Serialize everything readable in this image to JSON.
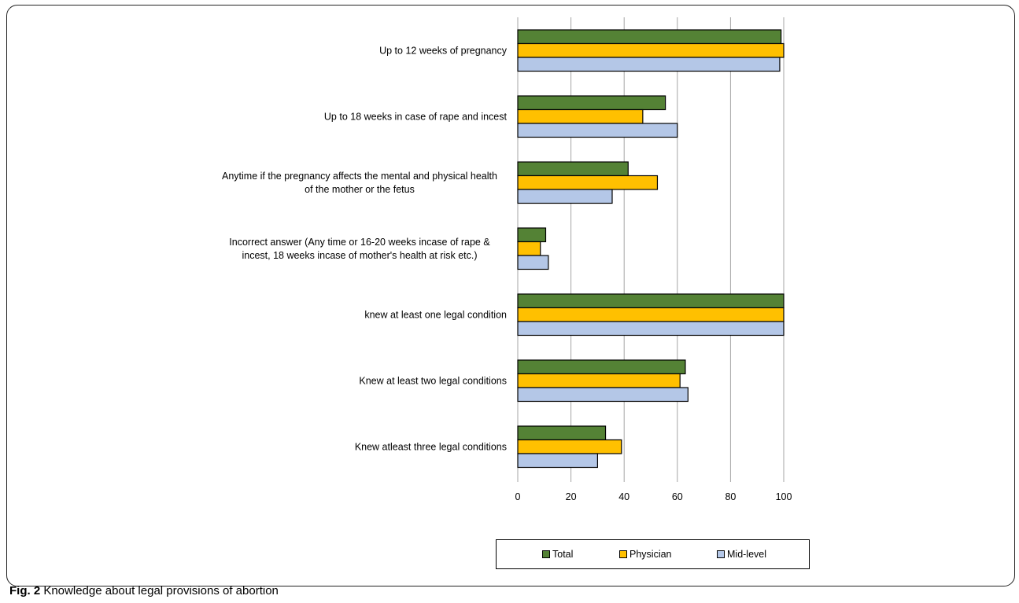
{
  "chart_data": {
    "type": "bar",
    "orientation": "horizontal",
    "categories": [
      "Up to 12 weeks of pregnancy",
      "Up to 18 weeks in case of rape and incest",
      [
        "Anytime if the pregnancy affects the mental and physical health",
        "of the mother or the fetus"
      ],
      [
        "Incorrect answer (Any time or 16-20 weeks incase of rape &",
        "incest, 18 weeks incase of mother's health at risk etc.)"
      ],
      "knew at least one legal condition",
      "Knew at least two legal conditions",
      "Knew atleast three legal conditions"
    ],
    "series": [
      {
        "name": "Total",
        "color": "#548235",
        "values": [
          99,
          55.5,
          41.5,
          10.5,
          100,
          63,
          33
        ]
      },
      {
        "name": "Physician",
        "color": "#ffc000",
        "values": [
          100,
          47,
          52.5,
          8.5,
          100,
          61,
          39
        ]
      },
      {
        "name": "Mid-level",
        "color": "#b4c7e7",
        "values": [
          98.5,
          60,
          35.5,
          11.5,
          100,
          64,
          30
        ]
      }
    ],
    "xlim": [
      0,
      100
    ],
    "xticks": [
      0,
      20,
      40,
      60,
      80,
      100
    ],
    "grid": "vertical",
    "legend": "bottom",
    "xlabel": "",
    "ylabel": ""
  },
  "caption": {
    "prefix": "Fig. 2",
    "text": " Knowledge about legal provisions of abortion"
  }
}
